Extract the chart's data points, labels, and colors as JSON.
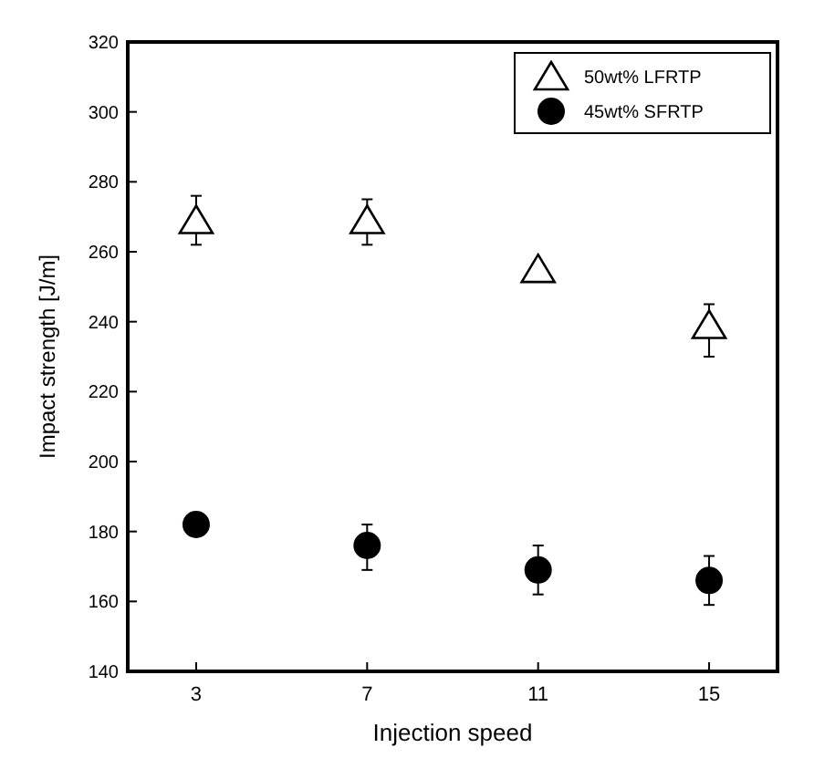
{
  "chart_data": {
    "type": "scatter",
    "xlabel": "Injection speed",
    "ylabel": "Impact strength [J/m]",
    "categories": [
      "3",
      "7",
      "11",
      "15"
    ],
    "ylim": [
      140,
      320
    ],
    "yticks": [
      140,
      160,
      180,
      200,
      220,
      240,
      260,
      280,
      300,
      320
    ],
    "legend": "top right",
    "grid": false,
    "series": [
      {
        "name": "50wt% LFRTP",
        "color": "#000000",
        "marker": "triangle",
        "values": [
          269,
          269,
          255,
          239
        ],
        "errors": [
          [
            262,
            276
          ],
          [
            262,
            275
          ],
          null,
          [
            230,
            245
          ]
        ]
      },
      {
        "name": "45wt% SFRTP",
        "color": "#000000",
        "marker": "circle",
        "values": [
          182,
          176,
          169,
          166
        ],
        "errors": [
          null,
          [
            169,
            182
          ],
          [
            162,
            176
          ],
          [
            159,
            173
          ]
        ]
      }
    ]
  }
}
